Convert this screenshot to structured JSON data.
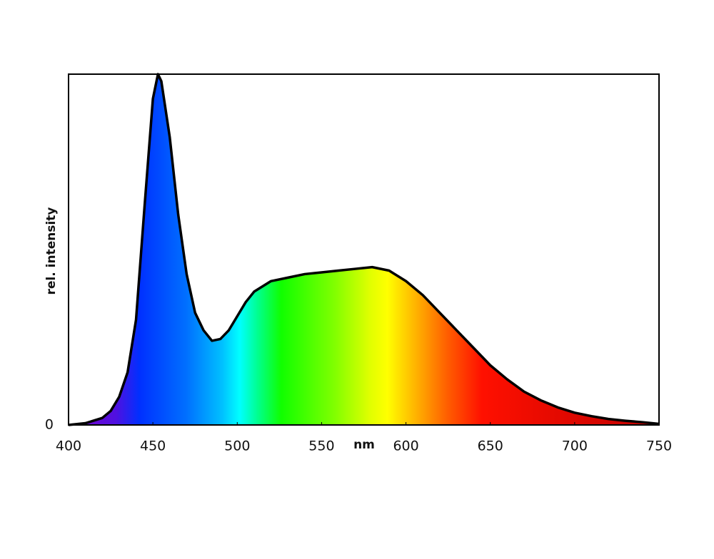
{
  "chart_data": {
    "type": "area",
    "xlabel": "nm",
    "ylabel": "rel. intensity",
    "x": [
      400,
      410,
      420,
      425,
      430,
      435,
      440,
      445,
      450,
      453,
      455,
      460,
      465,
      470,
      475,
      480,
      485,
      490,
      495,
      500,
      505,
      510,
      520,
      530,
      540,
      550,
      560,
      570,
      580,
      590,
      600,
      610,
      620,
      630,
      640,
      650,
      660,
      670,
      680,
      690,
      700,
      710,
      720,
      730,
      740,
      750
    ],
    "series": [
      {
        "color": "#000000",
        "values": [
          0,
          0.005,
          0.02,
          0.04,
          0.08,
          0.15,
          0.3,
          0.62,
          0.93,
          1.0,
          0.98,
          0.82,
          0.6,
          0.43,
          0.32,
          0.27,
          0.24,
          0.245,
          0.27,
          0.31,
          0.35,
          0.38,
          0.41,
          0.42,
          0.43,
          0.435,
          0.44,
          0.445,
          0.45,
          0.44,
          0.41,
          0.37,
          0.32,
          0.27,
          0.22,
          0.17,
          0.13,
          0.095,
          0.07,
          0.05,
          0.035,
          0.025,
          0.017,
          0.012,
          0.008,
          0.003
        ]
      }
    ],
    "xlim": [
      400,
      750
    ],
    "xticks": [
      400,
      450,
      500,
      550,
      600,
      650,
      700,
      750
    ],
    "ylim": [
      0,
      1
    ],
    "yticks": [
      0
    ]
  }
}
